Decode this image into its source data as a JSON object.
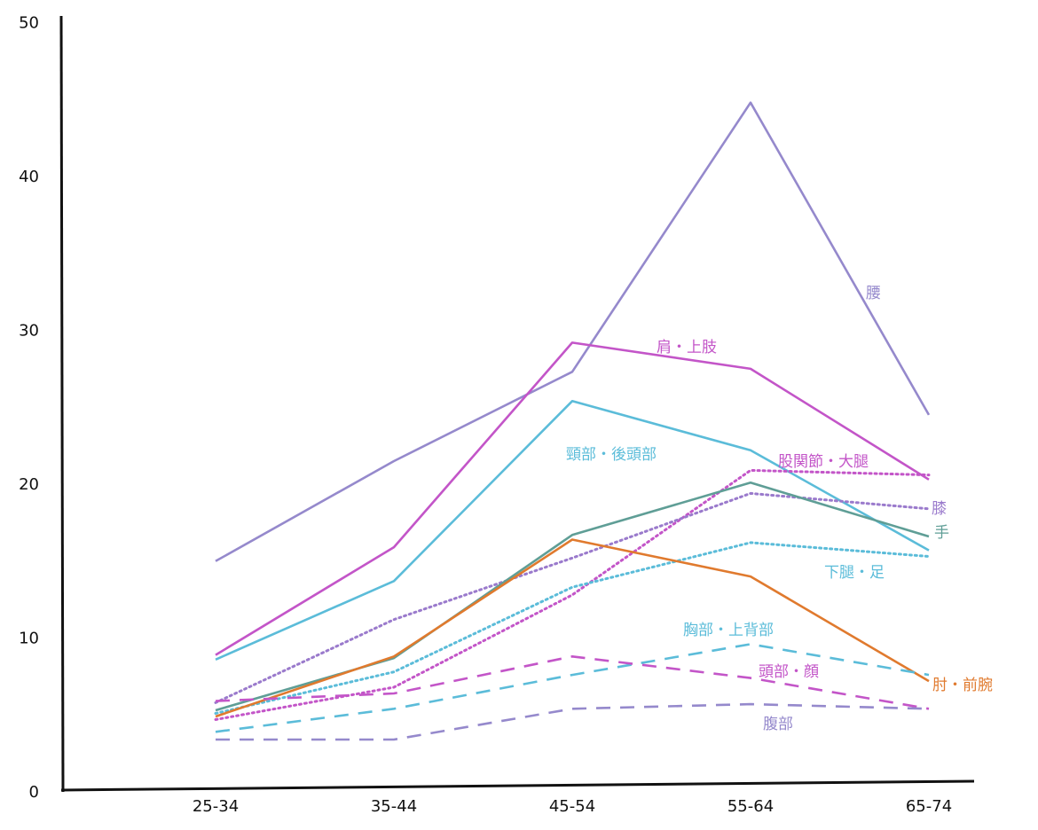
{
  "chart_data": {
    "type": "line",
    "title": "",
    "xlabel": "",
    "ylabel": "",
    "categories": [
      "25-34",
      "35-44",
      "45-54",
      "55-64",
      "65-74"
    ],
    "yticks": [
      "0",
      "10",
      "20",
      "30",
      "40",
      "50"
    ],
    "ylim": [
      0,
      50
    ],
    "grid": false,
    "legend": "inline labels",
    "series": [
      {
        "name": "腰",
        "values": [
          15.0,
          21.5,
          27.3,
          44.8,
          24.5
        ],
        "color": "#9589cc",
        "style": "solid"
      },
      {
        "name": "肩・上肢",
        "values": [
          8.9,
          15.9,
          29.2,
          27.5,
          20.3
        ],
        "color": "#c355c8",
        "style": "solid"
      },
      {
        "name": "頸部・後頭部",
        "values": [
          8.6,
          13.7,
          25.4,
          22.2,
          15.7
        ],
        "color": "#5bbcd9",
        "style": "solid"
      },
      {
        "name": "股関節・大腿",
        "values": [
          4.7,
          6.8,
          12.8,
          20.9,
          20.6
        ],
        "color": "#c355c8",
        "style": "dotted"
      },
      {
        "name": "膝",
        "values": [
          5.8,
          11.2,
          15.2,
          19.4,
          18.4
        ],
        "color": "#9a7acc",
        "style": "dotted"
      },
      {
        "name": "手",
        "values": [
          5.3,
          8.7,
          16.7,
          20.1,
          16.6
        ],
        "color": "#5f9e96",
        "style": "solid"
      },
      {
        "name": "下腿・足",
        "values": [
          5.1,
          7.8,
          13.3,
          16.2,
          15.3
        ],
        "color": "#5bbcd9",
        "style": "dotted"
      },
      {
        "name": "肘・前腕",
        "values": [
          4.9,
          8.8,
          16.4,
          14.0,
          7.2
        ],
        "color": "#e07a2e",
        "style": "solid"
      },
      {
        "name": "胸部・上背部",
        "values": [
          3.9,
          5.4,
          7.6,
          9.6,
          7.6
        ],
        "color": "#5bbcd9",
        "style": "dashed"
      },
      {
        "name": "頭部・顔",
        "values": [
          5.9,
          6.4,
          8.8,
          7.4,
          5.4
        ],
        "color": "#c355c8",
        "style": "dashed"
      },
      {
        "name": "腹部",
        "values": [
          3.4,
          3.4,
          5.4,
          5.7,
          5.4
        ],
        "color": "#9589cc",
        "style": "dashed"
      }
    ]
  }
}
